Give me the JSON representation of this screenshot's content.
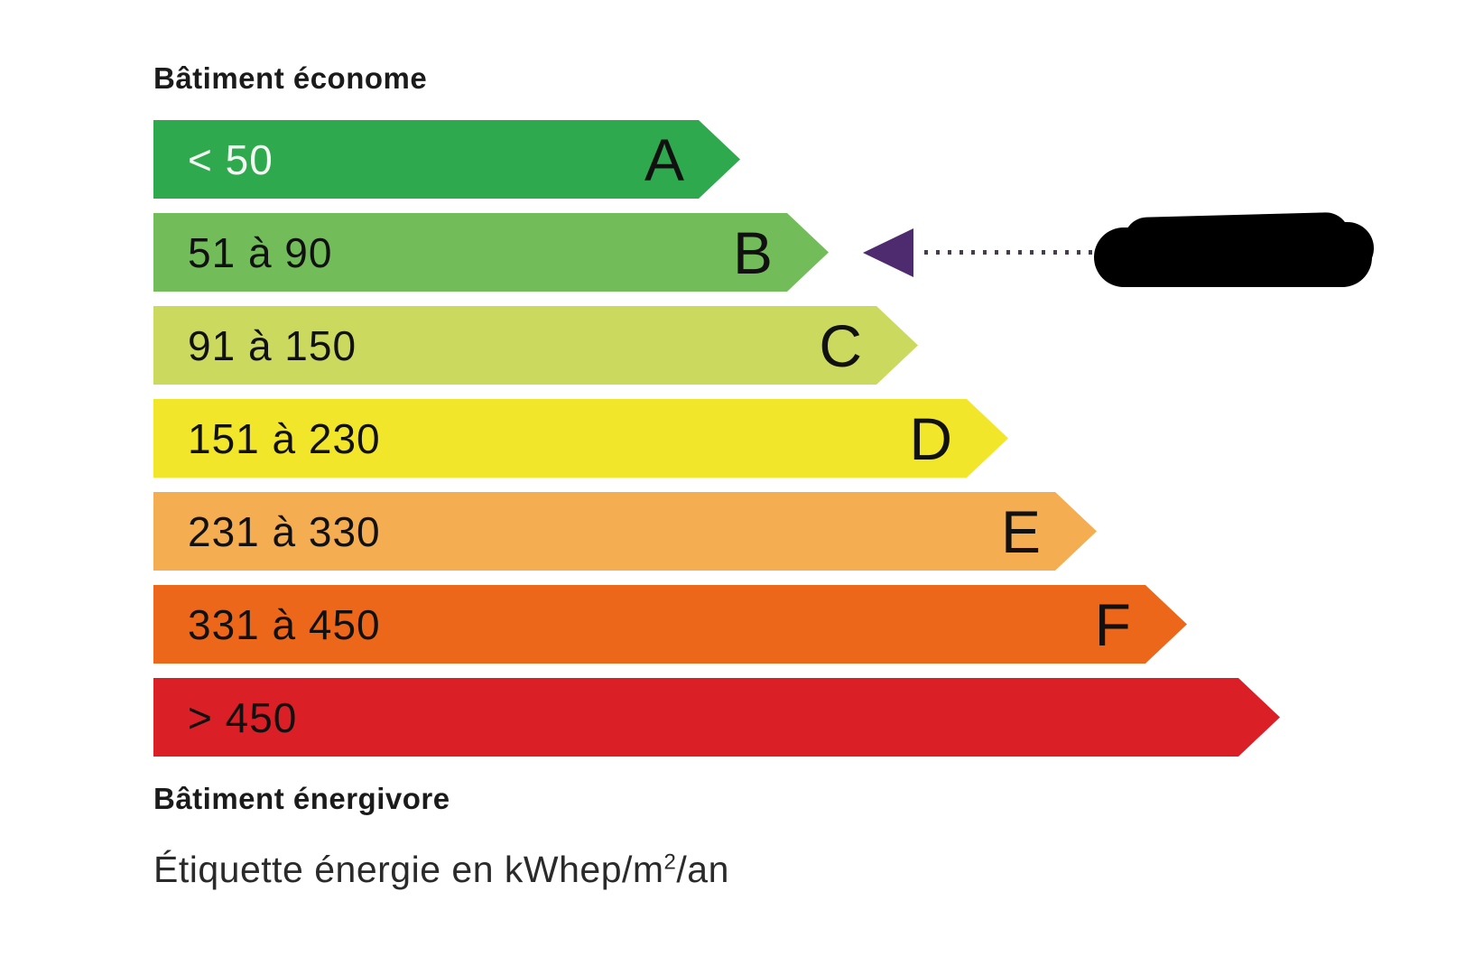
{
  "chart_data": {
    "type": "bar",
    "orientation": "horizontal",
    "title": "Étiquette énergie en kWhep/m²/an",
    "header_label": "Bâtiment économe",
    "footer_label": "Bâtiment énergivore",
    "unit": "kWhep/m²/an",
    "rows": [
      {
        "class": "A",
        "letter": "A",
        "range_label": "< 50",
        "min": null,
        "max": 50,
        "color": "#2fa94e",
        "text_color": "#f4f9f4"
      },
      {
        "class": "B",
        "letter": "B",
        "range_label": "51 à 90",
        "min": 51,
        "max": 90,
        "color": "#72bd5a",
        "text_color": "#111111"
      },
      {
        "class": "C",
        "letter": "C",
        "range_label": "91 à 150",
        "min": 91,
        "max": 150,
        "color": "#cbd95e",
        "text_color": "#111111"
      },
      {
        "class": "D",
        "letter": "D",
        "range_label": "151 à 230",
        "min": 151,
        "max": 230,
        "color": "#f2e62b",
        "text_color": "#111111"
      },
      {
        "class": "E",
        "letter": "E",
        "range_label": "231 à 330",
        "min": 231,
        "max": 330,
        "color": "#f4ad50",
        "text_color": "#111111"
      },
      {
        "class": "F",
        "letter": "F",
        "range_label": "331 à 450",
        "min": 331,
        "max": 450,
        "color": "#ec671a",
        "text_color": "#111111"
      },
      {
        "class": "G",
        "letter": "",
        "range_label": "> 450",
        "min": 450,
        "max": null,
        "color": "#da1f26",
        "text_color": "#111111"
      }
    ],
    "indicator": {
      "points_to_class": "B",
      "arrow_color": "#4e2a6e",
      "value_redacted": true
    },
    "legend_position": "none",
    "grid": false
  },
  "caption": {
    "prefix": "Étiquette énergie en kWhep/m",
    "sup": "2",
    "suffix": "/an"
  }
}
